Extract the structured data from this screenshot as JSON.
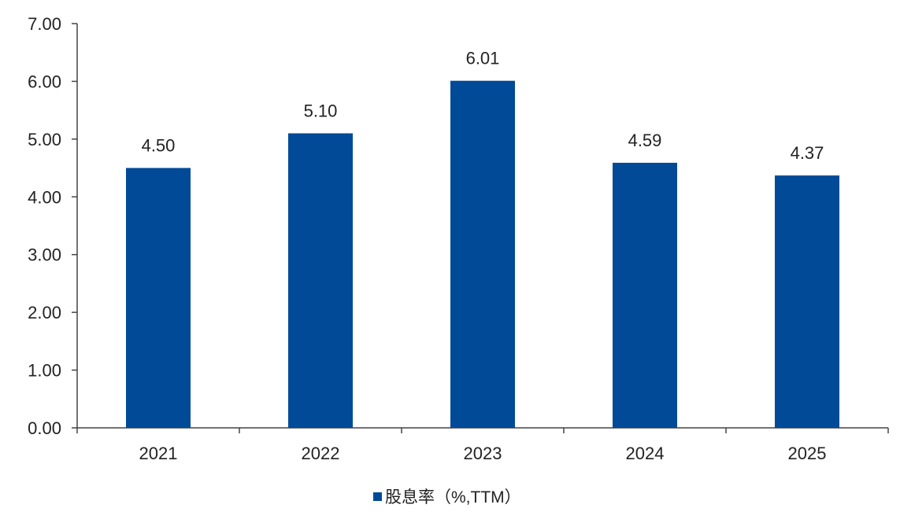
{
  "chart_data": {
    "type": "bar",
    "categories": [
      "2021",
      "2022",
      "2023",
      "2024",
      "2025"
    ],
    "series": [
      {
        "name": "股息率（%,TTM）",
        "values": [
          4.5,
          5.1,
          6.01,
          4.59,
          4.37
        ],
        "color": "#004a98"
      }
    ],
    "data_labels": [
      "4.50",
      "5.10",
      "6.01",
      "4.59",
      "4.37"
    ],
    "y_ticks": [
      "0.00",
      "1.00",
      "2.00",
      "3.00",
      "4.00",
      "5.00",
      "6.00",
      "7.00"
    ],
    "ylim": [
      0,
      7
    ],
    "grid": false,
    "legend_position": "bottom-center",
    "legend_label": "股息率（%,TTM）"
  }
}
